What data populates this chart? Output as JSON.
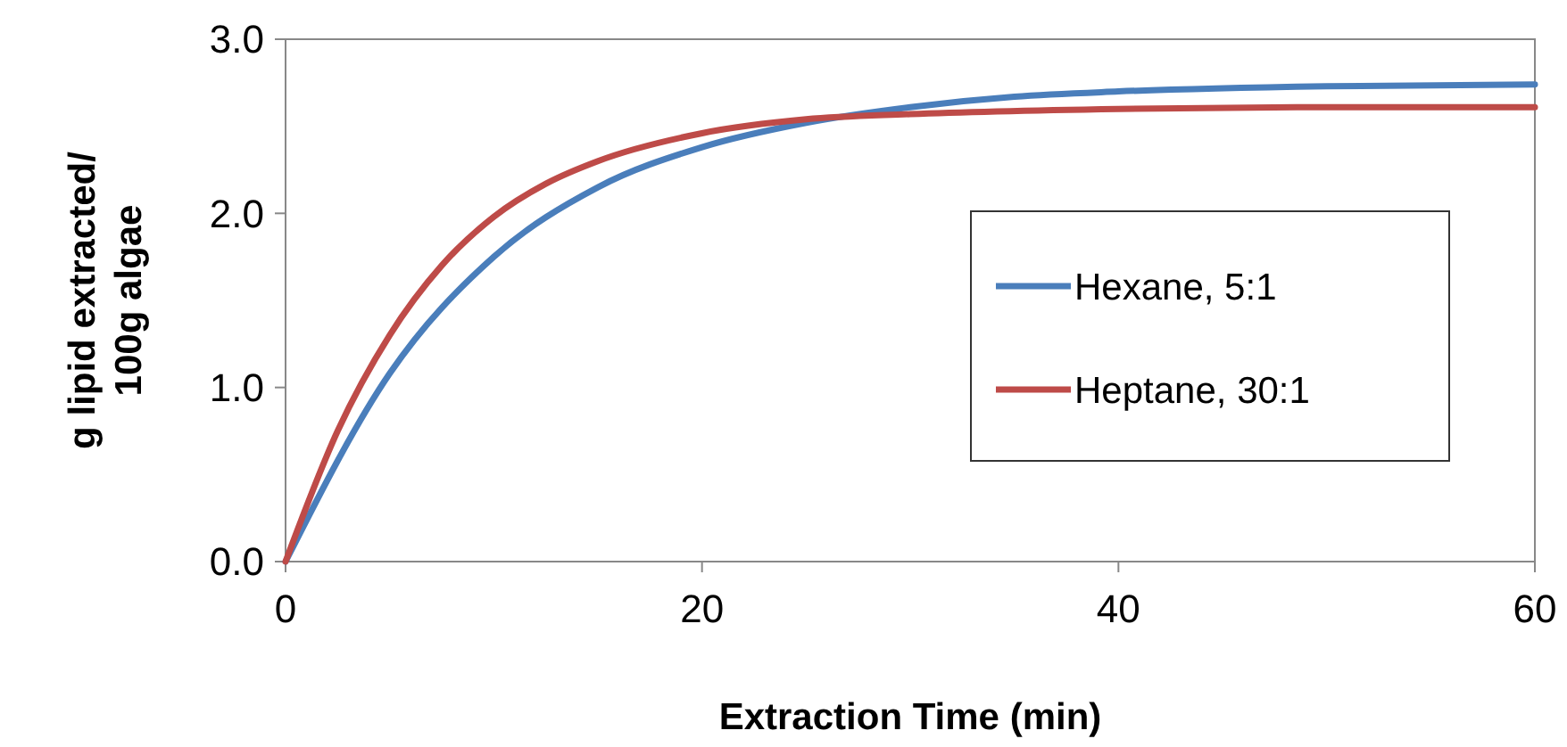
{
  "chart_data": {
    "type": "line",
    "xlabel": "Extraction Time (min)",
    "ylabel": "g lipid extracted/ 100g algae",
    "xlim": [
      0,
      60
    ],
    "xticks": [
      0,
      20,
      40,
      60
    ],
    "ylim": [
      0,
      3
    ],
    "yticks": [
      {
        "value": 0,
        "label": "0.0"
      },
      {
        "value": 1,
        "label": "1.0"
      },
      {
        "value": 2,
        "label": "2.0"
      },
      {
        "value": 3,
        "label": "3.0"
      }
    ],
    "grid": false,
    "legend": "right",
    "marker": "none",
    "line_style": "solid",
    "series": [
      {
        "name": "Hexane, 5:1",
        "color": "#4a7ebb",
        "x": [
          0,
          5,
          10,
          15,
          20,
          25,
          30,
          35,
          40,
          50,
          60
        ],
        "values": [
          0,
          1.08,
          1.75,
          2.15,
          2.38,
          2.52,
          2.61,
          2.67,
          2.7,
          2.73,
          2.74
        ]
      },
      {
        "name": "Heptane, 30:1",
        "color": "#be4b48",
        "x": [
          0,
          2.5,
          5,
          7.5,
          10,
          12.5,
          15,
          20,
          25,
          30,
          40,
          50,
          60
        ],
        "values": [
          0,
          0.75,
          1.3,
          1.7,
          1.98,
          2.17,
          2.3,
          2.46,
          2.54,
          2.57,
          2.6,
          2.61,
          2.61
        ]
      }
    ]
  }
}
